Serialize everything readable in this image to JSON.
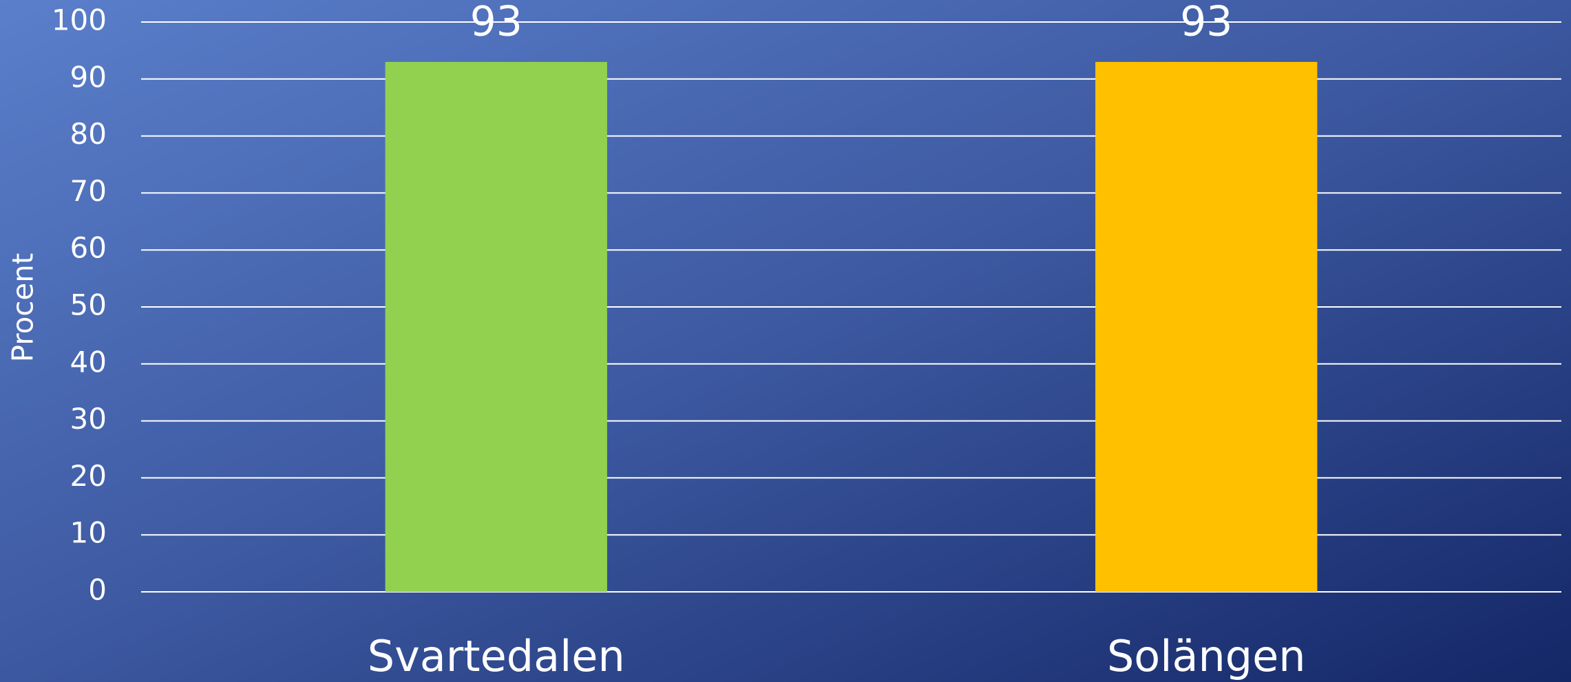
{
  "chart_data": {
    "type": "bar",
    "categories": [
      "Svartedalen",
      "Solängen"
    ],
    "values": [
      93,
      93
    ],
    "colors": [
      "#92d050",
      "#ffc000"
    ],
    "y_label": "Procent",
    "ylim": [
      0,
      100
    ],
    "yticks": [
      0,
      10,
      20,
      30,
      40,
      50,
      60,
      70,
      80,
      90,
      100
    ],
    "grid": true
  }
}
